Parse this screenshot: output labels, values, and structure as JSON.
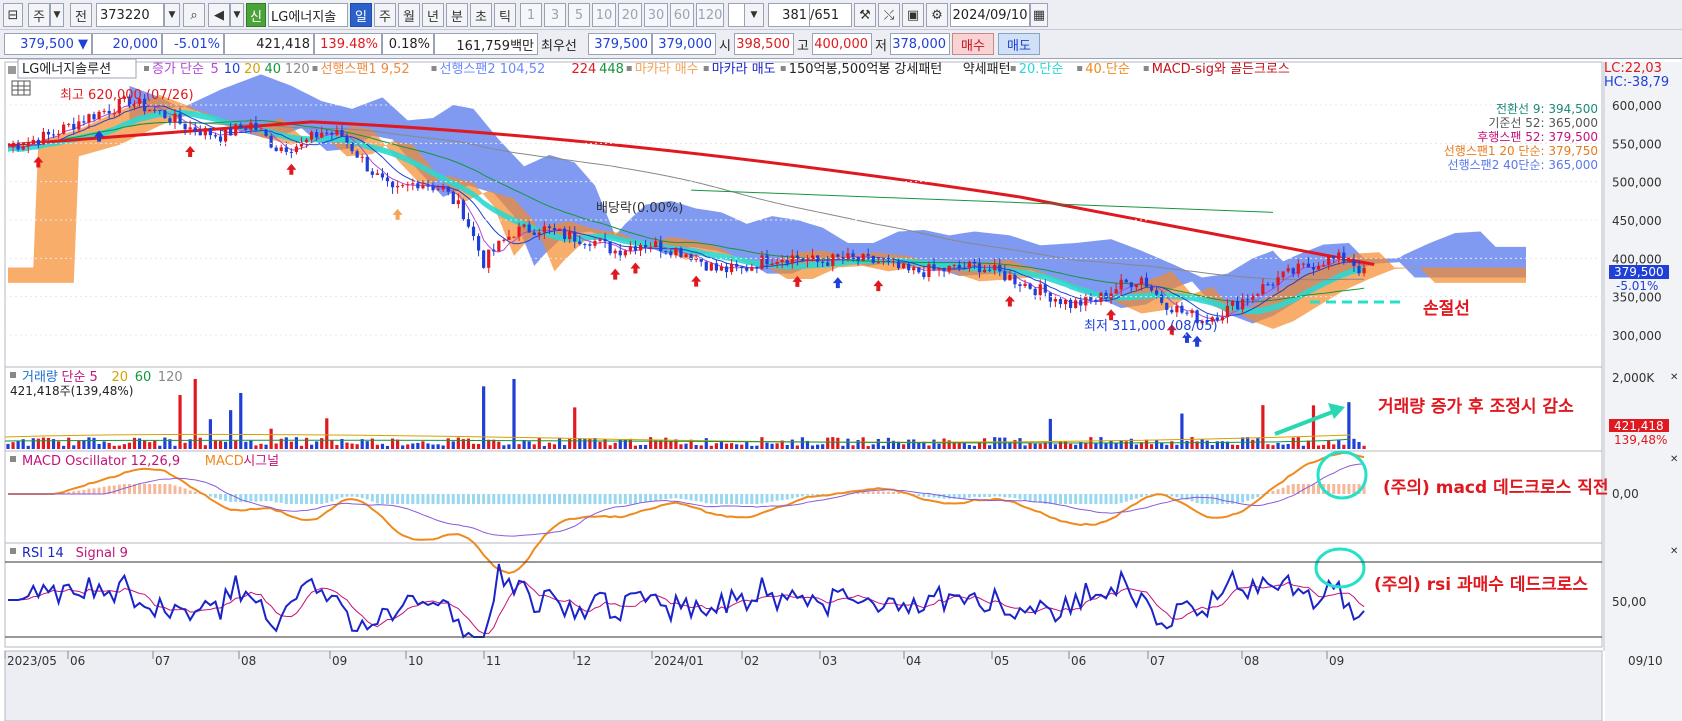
{
  "toolbar": {
    "market": "주",
    "prev": "전",
    "code": "373220",
    "code_prefix": "신",
    "name": "LG에너지솔",
    "periods": [
      "일",
      "주",
      "월",
      "년",
      "분",
      "초",
      "틱"
    ],
    "numbers": [
      "1",
      "3",
      "5",
      "10",
      "20",
      "30",
      "60",
      "120"
    ],
    "count": "381",
    "total": "/651",
    "date": "2024/09/10"
  },
  "quote": {
    "price": "379,500",
    "change": "20,000",
    "rate": "-5.01%",
    "volume": "421,418",
    "vol_rate": "139.48%",
    "turnover": "0.18%",
    "amount": "161,759백만",
    "best_label": "최우선",
    "ask": "379,500",
    "bid": "379,000",
    "open_label": "시",
    "open": "398,500",
    "high_label": "고",
    "high": "400,000",
    "low_label": "저",
    "low": "378,000",
    "buy": "매수",
    "sell": "매도"
  },
  "main_legend": {
    "name": "LG에너지솔루션",
    "items": [
      {
        "text": "증가 단순",
        "color": "#b14bd6"
      },
      {
        "text": "5",
        "color": "#b14bd6"
      },
      {
        "text": "10",
        "color": "#1f3fd6"
      },
      {
        "text": "20",
        "color": "#d6a100"
      },
      {
        "text": "40",
        "color": "#14963c"
      },
      {
        "text": "120",
        "color": "#888888"
      },
      {
        "text": "선행스팬1 9,52",
        "color": "#f08a3c"
      },
      {
        "text": "선행스팬2 104,52",
        "color": "#6a88ff"
      },
      {
        "text": "224",
        "color": "#e0181f"
      },
      {
        "text": "448",
        "color": "#14963c"
      },
      {
        "text": "마카라 매수",
        "color": "#f5a356"
      },
      {
        "text": "마카라 매도",
        "color": "#1a24c8"
      },
      {
        "text": "150억봉,500억봉 강세패턴",
        "color": "#222"
      },
      {
        "text": "약세패턴",
        "color": "#222"
      },
      {
        "text": "20.단순",
        "color": "#28d8d8"
      },
      {
        "text": "40.단순",
        "color": "#f08a1c"
      },
      {
        "text": "MACD-sig와 골든크로스",
        "color": "#c4121c"
      }
    ]
  },
  "corner": {
    "lc": "LC:22,03",
    "hc": "HC:-38,79"
  },
  "ichimoku_values": [
    {
      "text": "전환선 9: 394,500",
      "color": "#1a8a7a"
    },
    {
      "text": "기준선 52: 365,000",
      "color": "#555555"
    },
    {
      "text": "후행스팬 52: 379,500",
      "color": "#c4127a"
    },
    {
      "text": "선행스팬1 20 단순: 379,750",
      "color": "#e87a1c"
    },
    {
      "text": "선행스팬2 40단순: 365,000",
      "color": "#5a78e8"
    }
  ],
  "annotations": {
    "high": "최고 620,000 (07/26)",
    "low": "최저 311,000 (08/05)",
    "dividend": "배당락(0.00%)",
    "stop": "손절선",
    "volume_note": "거래량 증가 후 조정시 감소",
    "macd_note": "(주의) macd 데드크로스 직전",
    "rsi_note": "(주의) rsi 과매수 데드크로스"
  },
  "price_labels": {
    "current": "379,500",
    "rate": "-5.01%"
  },
  "volume_panel": {
    "legend": [
      {
        "text": "거래량",
        "color": "#1a6fd6"
      },
      {
        "text": "단순 5",
        "color": "#c4127a"
      },
      {
        "text": "20",
        "color": "#d6a100"
      },
      {
        "text": "60",
        "color": "#14963c"
      },
      {
        "text": "120",
        "color": "#888888"
      }
    ],
    "info": "421,418주(139,48%)",
    "axis": "2,000K",
    "current": "421,418",
    "rate": "139,48%"
  },
  "macd_panel": {
    "legend": [
      {
        "text": "MACD Oscillator 12,26,9",
        "color": "#c4127a"
      },
      {
        "text": "MACD",
        "color": "#f08a1c"
      },
      {
        "text": "시그널",
        "color": "#c4127a"
      }
    ],
    "zero": "0,00"
  },
  "rsi_panel": {
    "legend": [
      {
        "text": "RSI 14",
        "color": "#1a24c8"
      },
      {
        "text": "Signal 9",
        "color": "#c4127a"
      }
    ],
    "mid": "50,00"
  },
  "x_labels": [
    "2023/05",
    "06",
    "07",
    "08",
    "09",
    "10",
    "11",
    "12",
    "2024/01",
    "02",
    "03",
    "04",
    "05",
    "06",
    "07",
    "08",
    "09"
  ],
  "x_end": "09/10",
  "chart_data": {
    "type": "candlestick",
    "title": "LG에너지솔루션",
    "y_ticks": [
      300000,
      350000,
      400000,
      450000,
      500000,
      550000,
      600000
    ],
    "y_tick_labels": [
      "300,000",
      "350,000",
      "400,000",
      "450,000",
      "500,000",
      "550,000",
      "600,000"
    ],
    "close_path": [
      [
        0,
        545000
      ],
      [
        8,
        560000
      ],
      [
        16,
        585000
      ],
      [
        24,
        605000
      ],
      [
        30,
        590000
      ],
      [
        36,
        570000
      ],
      [
        42,
        560000
      ],
      [
        48,
        575000
      ],
      [
        53,
        545000
      ],
      [
        58,
        548000
      ],
      [
        62,
        565000
      ],
      [
        66,
        560000
      ],
      [
        71,
        520000
      ],
      [
        76,
        485000
      ],
      [
        81,
        500000
      ],
      [
        86,
        490000
      ],
      [
        90,
        460000
      ],
      [
        94,
        395000
      ],
      [
        96,
        410000
      ],
      [
        100,
        435000
      ],
      [
        105,
        440000
      ],
      [
        110,
        430000
      ],
      [
        115,
        425000
      ],
      [
        120,
        410000
      ],
      [
        125,
        420000
      ],
      [
        130,
        415000
      ],
      [
        135,
        405000
      ],
      [
        140,
        385000
      ],
      [
        145,
        385000
      ],
      [
        150,
        400000
      ],
      [
        155,
        402000
      ],
      [
        160,
        395000
      ],
      [
        165,
        400000
      ],
      [
        172,
        395000
      ],
      [
        178,
        382000
      ],
      [
        185,
        385000
      ],
      [
        192,
        390000
      ],
      [
        198,
        375000
      ],
      [
        205,
        355000
      ],
      [
        210,
        340000
      ],
      [
        215,
        345000
      ],
      [
        220,
        365000
      ],
      [
        224,
        375000
      ],
      [
        228,
        345000
      ],
      [
        232,
        330000
      ],
      [
        236,
        320000
      ],
      [
        240,
        330000
      ],
      [
        245,
        350000
      ],
      [
        250,
        370000
      ],
      [
        255,
        385000
      ],
      [
        260,
        398000
      ],
      [
        265,
        400000
      ],
      [
        268,
        380000
      ]
    ],
    "high": {
      "value": 620000,
      "date": "07/26"
    },
    "low": {
      "value": 311000,
      "date": "08/05"
    },
    "current": 379500
  }
}
